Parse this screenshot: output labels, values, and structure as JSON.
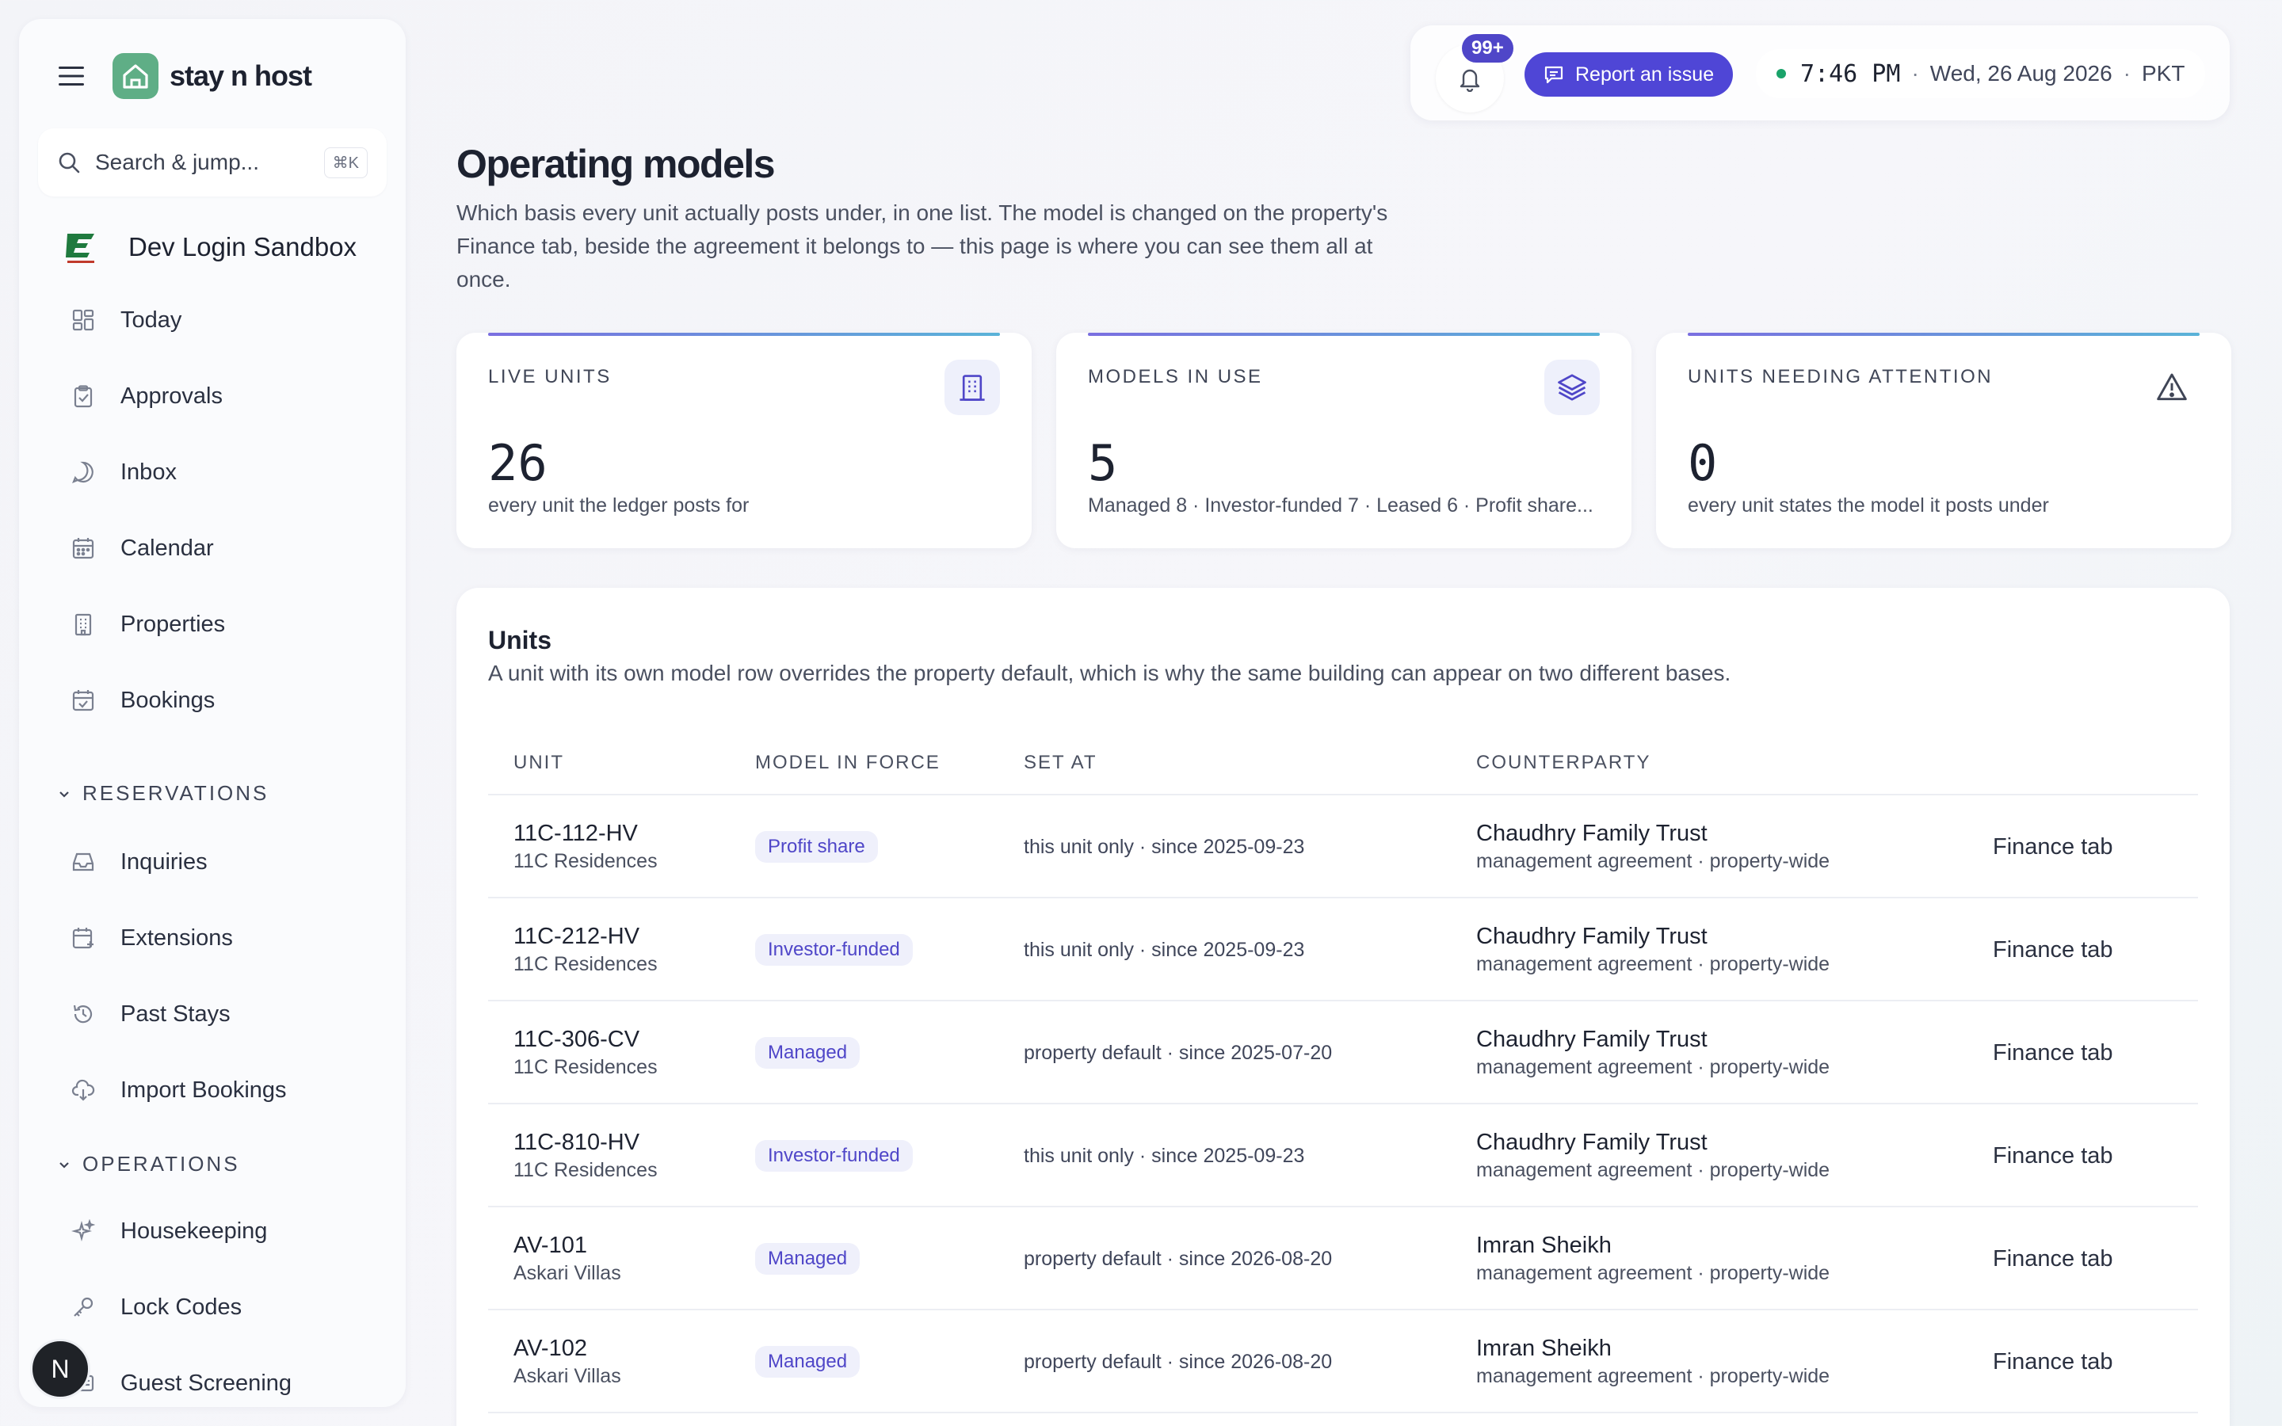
{
  "brand": {
    "name": "stay n host"
  },
  "search": {
    "placeholder": "Search & jump...",
    "shortcut": "⌘K"
  },
  "org": {
    "name": "Dev Login Sandbox"
  },
  "nav": {
    "primary": [
      {
        "label": "Today",
        "icon": "dashboard-icon"
      },
      {
        "label": "Approvals",
        "icon": "clipboard-check-icon"
      },
      {
        "label": "Inbox",
        "icon": "chat-bubble-icon"
      },
      {
        "label": "Calendar",
        "icon": "calendar-icon"
      },
      {
        "label": "Properties",
        "icon": "building-icon"
      },
      {
        "label": "Bookings",
        "icon": "calendar-check-icon"
      }
    ],
    "reservations_label": "RESERVATIONS",
    "reservations": [
      {
        "label": "Inquiries",
        "icon": "inbox-tray-icon"
      },
      {
        "label": "Extensions",
        "icon": "calendar-plus-icon"
      },
      {
        "label": "Past Stays",
        "icon": "history-icon"
      },
      {
        "label": "Import Bookings",
        "icon": "cloud-download-icon"
      }
    ],
    "operations_label": "OPERATIONS",
    "operations": [
      {
        "label": "Housekeeping",
        "icon": "sparkles-icon"
      },
      {
        "label": "Lock Codes",
        "icon": "key-icon"
      },
      {
        "label": "Guest Screening",
        "icon": "id-card-icon"
      }
    ]
  },
  "user": {
    "initial": "N"
  },
  "topbar": {
    "notifications_badge": "99+",
    "report_label": "Report an issue",
    "time": "7:46 PM",
    "date": "Wed, 26 Aug 2026",
    "timezone": "PKT",
    "status_color": "#1aa36a"
  },
  "page": {
    "title": "Operating models",
    "description": "Which basis every unit actually posts under, in one list. The model is changed on the property's Finance tab, beside the agreement it belongs to — this page is where you can see them all at once."
  },
  "stats": [
    {
      "label": "LIVE UNITS",
      "value": "26",
      "sub": "every unit the ledger posts for",
      "icon": "building-icon"
    },
    {
      "label": "MODELS IN USE",
      "value": "5",
      "sub": "Managed 8 · Investor-funded 7 · Leased 6 · Profit share...",
      "icon": "layers-icon"
    },
    {
      "label": "UNITS NEEDING ATTENTION",
      "value": "0",
      "sub": "every unit states the model it posts under",
      "icon": "warning-triangle-icon"
    }
  ],
  "units": {
    "title": "Units",
    "description": "A unit with its own model row overrides the property default, which is why the same building can appear on two different bases.",
    "columns": [
      "UNIT",
      "MODEL IN FORCE",
      "SET AT",
      "COUNTERPARTY"
    ],
    "rows": [
      {
        "code": "11C-112-HV",
        "property": "11C Residences",
        "model": "Profit share",
        "set_at": "this unit only · since 2025-09-23",
        "counterparty": "Chaudhry Family Trust",
        "agreement": "management agreement · property-wide",
        "link": "Finance tab"
      },
      {
        "code": "11C-212-HV",
        "property": "11C Residences",
        "model": "Investor-funded",
        "set_at": "this unit only · since 2025-09-23",
        "counterparty": "Chaudhry Family Trust",
        "agreement": "management agreement · property-wide",
        "link": "Finance tab"
      },
      {
        "code": "11C-306-CV",
        "property": "11C Residences",
        "model": "Managed",
        "set_at": "property default · since 2025-07-20",
        "counterparty": "Chaudhry Family Trust",
        "agreement": "management agreement · property-wide",
        "link": "Finance tab"
      },
      {
        "code": "11C-810-HV",
        "property": "11C Residences",
        "model": "Investor-funded",
        "set_at": "this unit only · since 2025-09-23",
        "counterparty": "Chaudhry Family Trust",
        "agreement": "management agreement · property-wide",
        "link": "Finance tab"
      },
      {
        "code": "AV-101",
        "property": "Askari Villas",
        "model": "Managed",
        "set_at": "property default · since 2026-08-20",
        "counterparty": "Imran Sheikh",
        "agreement": "management agreement · property-wide",
        "link": "Finance tab"
      },
      {
        "code": "AV-102",
        "property": "Askari Villas",
        "model": "Managed",
        "set_at": "property default · since 2026-08-20",
        "counterparty": "Imran Sheikh",
        "agreement": "management agreement · property-wide",
        "link": "Finance tab"
      }
    ]
  },
  "colors": {
    "accent": "#4f46d6",
    "brand_green": "#5fae86",
    "pill_text": "#4f46c8",
    "pill_bg": "#eff0fb"
  }
}
